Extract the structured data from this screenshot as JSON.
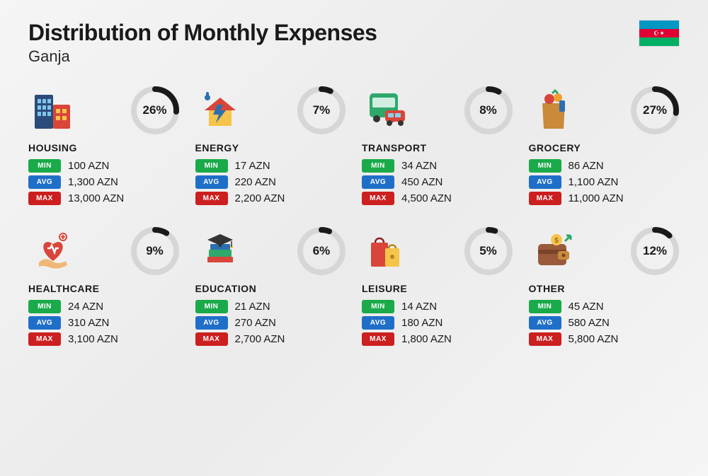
{
  "title": "Distribution of Monthly Expenses",
  "subtitle": "Ganja",
  "currency": "AZN",
  "labels": {
    "min": "MIN",
    "avg": "AVG",
    "max": "MAX"
  },
  "donut": {
    "track_color": "#d6d6d6",
    "fill_color": "#1a1a1a",
    "stroke_width": 8,
    "radius": 30
  },
  "badge_colors": {
    "min": "#1aaa4a",
    "avg": "#1f6fc9",
    "max": "#cc1f1f"
  },
  "categories": [
    {
      "key": "housing",
      "name": "HOUSING",
      "percent": 26,
      "min": "100",
      "avg": "1,300",
      "max": "13,000",
      "icon": "buildings"
    },
    {
      "key": "energy",
      "name": "ENERGY",
      "percent": 7,
      "min": "17",
      "avg": "220",
      "max": "2,200",
      "icon": "energy-house"
    },
    {
      "key": "transport",
      "name": "TRANSPORT",
      "percent": 8,
      "min": "34",
      "avg": "450",
      "max": "4,500",
      "icon": "transport"
    },
    {
      "key": "grocery",
      "name": "GROCERY",
      "percent": 27,
      "min": "86",
      "avg": "1,100",
      "max": "11,000",
      "icon": "grocery-bag"
    },
    {
      "key": "healthcare",
      "name": "HEALTHCARE",
      "percent": 9,
      "min": "24",
      "avg": "310",
      "max": "3,100",
      "icon": "heart-hand"
    },
    {
      "key": "education",
      "name": "EDUCATION",
      "percent": 6,
      "min": "21",
      "avg": "270",
      "max": "2,700",
      "icon": "books-cap"
    },
    {
      "key": "leisure",
      "name": "LEISURE",
      "percent": 5,
      "min": "14",
      "avg": "180",
      "max": "1,800",
      "icon": "shopping-bags"
    },
    {
      "key": "other",
      "name": "OTHER",
      "percent": 12,
      "min": "45",
      "avg": "580",
      "max": "5,800",
      "icon": "wallet"
    }
  ]
}
